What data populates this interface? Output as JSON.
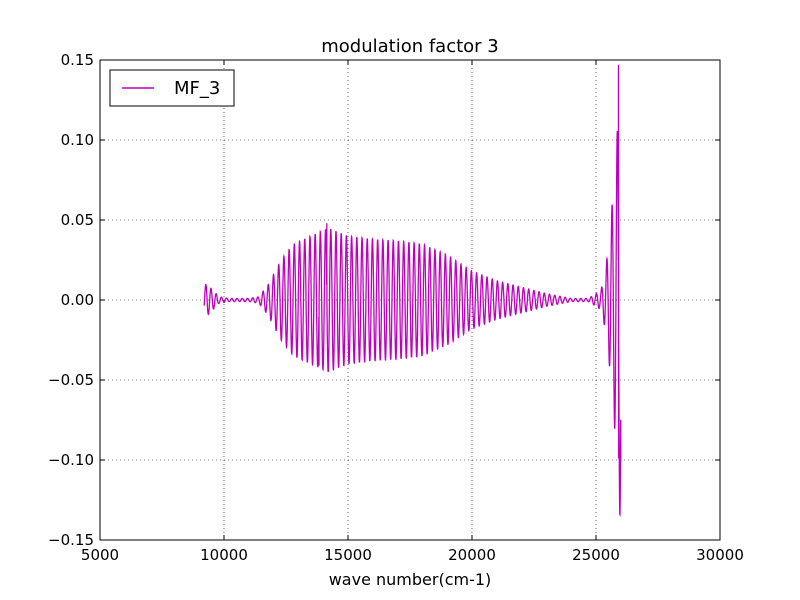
{
  "chart_data": {
    "type": "line",
    "title": "modulation factor 3",
    "xlabel": "wave number(cm-1)",
    "ylabel": "",
    "xlim": [
      5000,
      30000
    ],
    "ylim": [
      -0.15,
      0.15
    ],
    "xticks": [
      5000,
      10000,
      15000,
      20000,
      25000,
      30000
    ],
    "xtick_labels": [
      "5000",
      "10000",
      "15000",
      "20000",
      "25000",
      "30000"
    ],
    "yticks": [
      -0.15,
      -0.1,
      -0.05,
      0.0,
      0.05,
      0.1,
      0.15
    ],
    "ytick_labels": [
      "−0.15",
      "−0.10",
      "−0.05",
      "0.00",
      "0.05",
      "0.10",
      "0.15"
    ],
    "grid": true,
    "legend_position": "upper-left",
    "series": [
      {
        "name": "MF_3",
        "color": "#bf00bf",
        "x_start": 9200,
        "x_end": 26000,
        "envelope_points": [
          [
            9200,
            0.009
          ],
          [
            9300,
            0.01
          ],
          [
            9500,
            0.007
          ],
          [
            9800,
            0.002
          ],
          [
            10200,
            0.001
          ],
          [
            11000,
            0.001
          ],
          [
            11400,
            0.002
          ],
          [
            11800,
            0.01
          ],
          [
            12300,
            0.025
          ],
          [
            12800,
            0.035
          ],
          [
            13500,
            0.04
          ],
          [
            14200,
            0.045
          ],
          [
            15000,
            0.04
          ],
          [
            16000,
            0.038
          ],
          [
            17000,
            0.037
          ],
          [
            18000,
            0.035
          ],
          [
            19000,
            0.028
          ],
          [
            20000,
            0.018
          ],
          [
            21000,
            0.012
          ],
          [
            22000,
            0.008
          ],
          [
            23000,
            0.004
          ],
          [
            24000,
            0.001
          ],
          [
            24700,
            0.001
          ],
          [
            25200,
            0.006
          ],
          [
            25400,
            0.02
          ],
          [
            25600,
            0.05
          ],
          [
            25800,
            0.09
          ],
          [
            26000,
            0.145
          ]
        ],
        "notable_values": [
          {
            "x": 14150,
            "y": 0.048
          },
          {
            "x": 13850,
            "y": -0.041
          },
          {
            "x": 25900,
            "y": -0.099
          },
          {
            "x": 26000,
            "y": 0.147
          },
          {
            "x": 26000,
            "y": -0.101
          }
        ]
      }
    ]
  }
}
